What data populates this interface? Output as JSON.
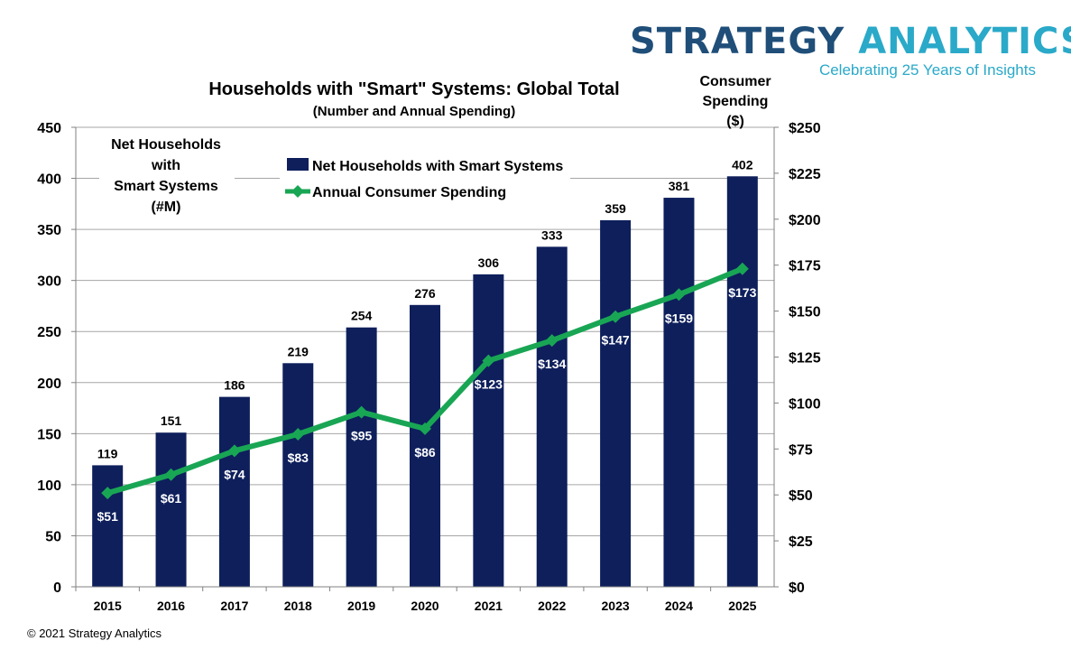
{
  "brand": {
    "word1": "STRATEGY",
    "word2": "ANALYTICS",
    "tagline": "Celebrating 25 Years of Insights",
    "color_dark": "#1f4e79",
    "color_light": "#2aa9c9"
  },
  "copyright": "© 2021 Strategy Analytics",
  "chart_data": {
    "type": "bar",
    "title": "Households with \"Smart\" Systems: Global Total",
    "subtitle": "(Number and Annual Spending)",
    "categories": [
      "2015",
      "2016",
      "2017",
      "2018",
      "2019",
      "2020",
      "2021",
      "2022",
      "2023",
      "2024",
      "2025"
    ],
    "series": [
      {
        "name": "Net Households with Smart Systems",
        "type": "bar",
        "axis": "left",
        "color": "#0e1f5c",
        "values": [
          119,
          151,
          186,
          219,
          254,
          276,
          306,
          333,
          359,
          381,
          402
        ],
        "labels": [
          "119",
          "151",
          "186",
          "219",
          "254",
          "276",
          "306",
          "333",
          "359",
          "381",
          "402"
        ]
      },
      {
        "name": "Annual Consumer Spending",
        "type": "line",
        "axis": "right",
        "color": "#19a654",
        "marker": "diamond",
        "values": [
          51,
          61,
          74,
          83,
          95,
          86,
          123,
          134,
          147,
          159,
          173
        ],
        "labels": [
          "$51",
          "$61",
          "$74",
          "$83",
          "$95",
          "$86",
          "$123",
          "$134",
          "$147",
          "$159",
          "$173"
        ]
      }
    ],
    "left_axis": {
      "label_lines": [
        "Net Households",
        "with",
        "Smart Systems",
        "(#M)"
      ],
      "range": [
        0,
        450
      ],
      "ticks": [
        0,
        50,
        100,
        150,
        200,
        250,
        300,
        350,
        400,
        450
      ],
      "tick_labels": [
        "0",
        "50",
        "100",
        "150",
        "200",
        "250",
        "300",
        "350",
        "400",
        "450"
      ]
    },
    "right_axis": {
      "label_lines": [
        "Consumer",
        "Spending",
        "($)"
      ],
      "range": [
        0,
        250
      ],
      "ticks": [
        0,
        25,
        50,
        75,
        100,
        125,
        150,
        175,
        200,
        225,
        250
      ],
      "tick_labels": [
        "$0",
        "$25",
        "$50",
        "$75",
        "$100",
        "$125",
        "$150",
        "$175",
        "$200",
        "$225",
        "$250"
      ]
    },
    "grid": true,
    "legend_position": "top-left"
  }
}
